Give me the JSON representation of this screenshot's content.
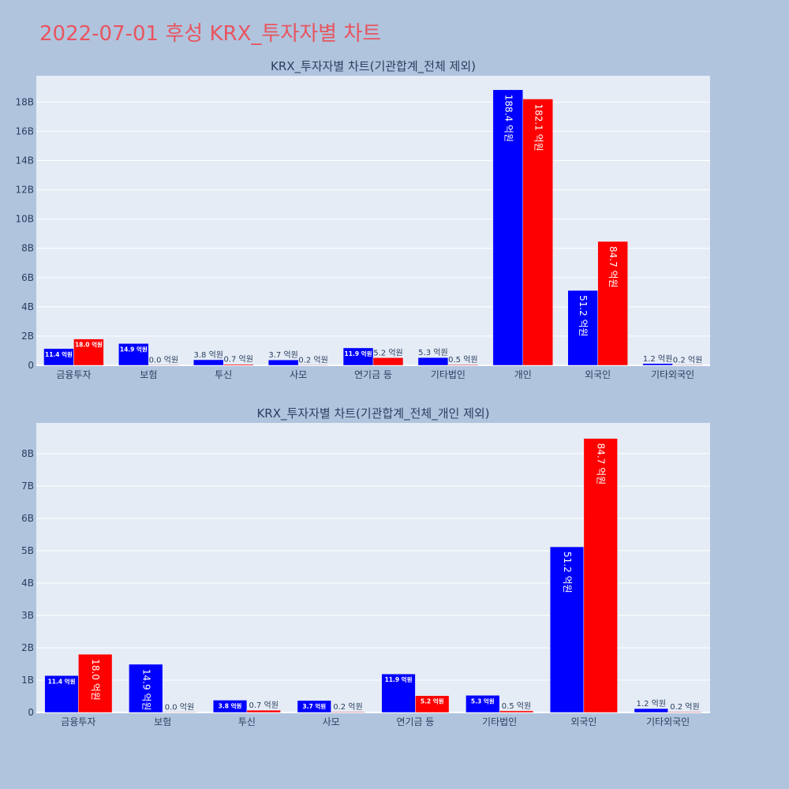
{
  "page_title": "2022-07-01 후성 KRX_투자자별 차트",
  "colors": {
    "page_bg": "#b0c4de",
    "plot_bg": "#e5ecf6",
    "grid": "#ffffff",
    "title": "#e8555f",
    "text": "#2a3f5f",
    "buy": "#0000ff",
    "sell": "#ff0000"
  },
  "chart_data": [
    {
      "type": "bar",
      "title": "KRX_투자자별 차트(기관합계_전체 제외)",
      "categories": [
        "금융투자",
        "보험",
        "투신",
        "사모",
        "연기금 등",
        "기타법인",
        "개인",
        "외국인",
        "기타외국인"
      ],
      "series": [
        {
          "color": "#0000ff",
          "values": [
            1.14,
            1.49,
            0.38,
            0.37,
            1.19,
            0.53,
            18.84,
            5.12,
            0.12
          ],
          "labels": [
            "11.4 억원",
            "14.9 억원",
            "3.8 억원",
            "3.7 억원",
            "11.9 억원",
            "5.3 억원",
            "188.4 억원",
            "51.2 억원",
            "1.2 억원"
          ]
        },
        {
          "color": "#ff0000",
          "values": [
            1.8,
            0.0,
            0.07,
            0.02,
            0.52,
            0.05,
            18.21,
            8.47,
            0.02
          ],
          "labels": [
            "18.0 억원",
            "0.0 억원",
            "0.7 억원",
            "0.2 억원",
            "5.2 억원",
            "0.5 억원",
            "182.1 억원",
            "84.7 억원",
            "0.2 억원"
          ]
        }
      ],
      "y_ticks": [
        {
          "v": 0,
          "t": "0"
        },
        {
          "v": 2,
          "t": "2B"
        },
        {
          "v": 4,
          "t": "4B"
        },
        {
          "v": 6,
          "t": "6B"
        },
        {
          "v": 8,
          "t": "8B"
        },
        {
          "v": 10,
          "t": "10B"
        },
        {
          "v": 12,
          "t": "12B"
        },
        {
          "v": 14,
          "t": "14B"
        },
        {
          "v": 16,
          "t": "16B"
        },
        {
          "v": 18,
          "t": "18B"
        }
      ],
      "ylim": [
        0,
        19.8
      ],
      "grid": true
    },
    {
      "type": "bar",
      "title": "KRX_투자자별 차트(기관합계_전체_개인 제외)",
      "categories": [
        "금융투자",
        "보험",
        "투신",
        "사모",
        "연기금 등",
        "기타법인",
        "외국인",
        "기타외국인"
      ],
      "series": [
        {
          "color": "#0000ff",
          "values": [
            1.14,
            1.49,
            0.38,
            0.37,
            1.19,
            0.53,
            5.12,
            0.12
          ],
          "labels": [
            "11.4 억원",
            "14.9 억원",
            "3.8 억원",
            "3.7 억원",
            "11.9 억원",
            "5.3 억원",
            "51.2 억원",
            "1.2 억원"
          ]
        },
        {
          "color": "#ff0000",
          "values": [
            1.8,
            0.0,
            0.07,
            0.02,
            0.52,
            0.05,
            8.47,
            0.02
          ],
          "labels": [
            "18.0 억원",
            "0.0 억원",
            "0.7 억원",
            "0.2 억원",
            "5.2 억원",
            "0.5 억원",
            "84.7 억원",
            "0.2 억원"
          ]
        }
      ],
      "y_ticks": [
        {
          "v": 0,
          "t": "0"
        },
        {
          "v": 1,
          "t": "1B"
        },
        {
          "v": 2,
          "t": "2B"
        },
        {
          "v": 3,
          "t": "3B"
        },
        {
          "v": 4,
          "t": "4B"
        },
        {
          "v": 5,
          "t": "5B"
        },
        {
          "v": 6,
          "t": "6B"
        },
        {
          "v": 7,
          "t": "7B"
        },
        {
          "v": 8,
          "t": "8B"
        }
      ],
      "ylim": [
        0,
        8.95
      ],
      "grid": true
    }
  ]
}
